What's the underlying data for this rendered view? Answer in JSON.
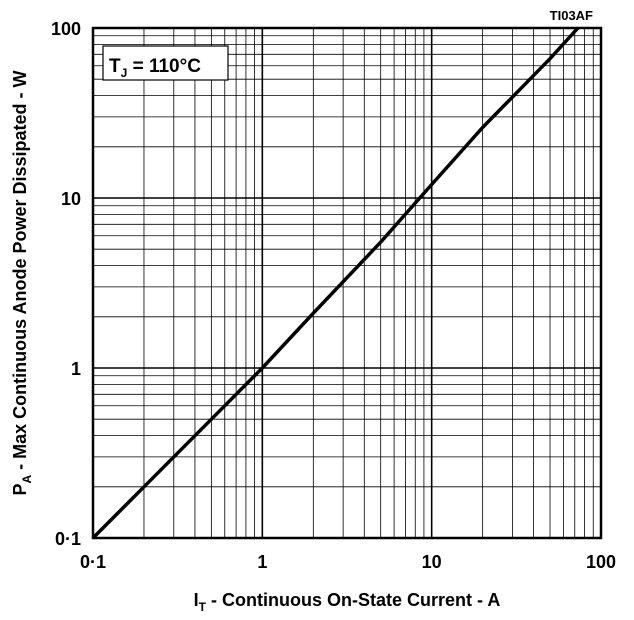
{
  "chart_data": {
    "type": "line",
    "x_label": {
      "main": "I",
      "sub": "T",
      "rest": " - Continuous On-State Current - A"
    },
    "y_label": {
      "main": "P",
      "sub": "A",
      "rest": " - Max Continuous Anode Power Dissipated - W"
    },
    "annotation": {
      "main": "T",
      "sub": "J",
      "rest": " = 110°C"
    },
    "figure_code": "TI03AF",
    "x": [
      0.1,
      0.2,
      0.5,
      1,
      2,
      5,
      10,
      20,
      50,
      73
    ],
    "series": [
      {
        "color": "#000000",
        "values": [
          0.1,
          0.2,
          0.5,
          1,
          2.1,
          5.5,
          12,
          26,
          66,
          100
        ]
      }
    ],
    "xlim": [
      0.1,
      100
    ],
    "ylim": [
      0.1,
      100
    ],
    "xscale": "log",
    "yscale": "log",
    "xticks": [
      {
        "value": 0.1,
        "label": "0·1"
      },
      1,
      10,
      100
    ],
    "yticks": [
      {
        "value": 0.1,
        "label": "0·1"
      },
      1,
      10,
      100
    ],
    "minor_gridlines": [
      0.2,
      0.3,
      0.4,
      0.5,
      0.6,
      0.7,
      0.8,
      0.9,
      2,
      3,
      4,
      5,
      6,
      7,
      8,
      9,
      20,
      30,
      40,
      50,
      60,
      70,
      80,
      90
    ],
    "grid": true
  }
}
